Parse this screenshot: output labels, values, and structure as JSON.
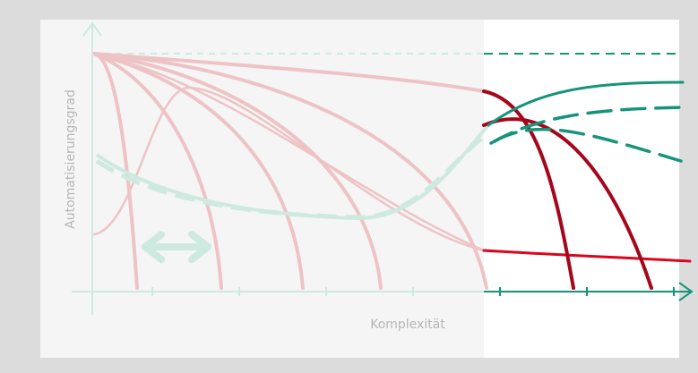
{
  "labels": {
    "x_axis": "Komplexität",
    "y_axis": "Automatisierungsgrad"
  },
  "colors": {
    "outer_background": "#dcdcdc",
    "faded_panel": "#f5f5f5",
    "white_panel": "#ffffff",
    "faded_red": "#eec3c5",
    "faded_green": "#cde9e0",
    "red": "#a5061b",
    "bright_red": "#d9061e",
    "green": "#16947a",
    "axis_label": "#b5b5b5"
  },
  "icons": {
    "double_arrow": "double-arrow-icon"
  }
}
